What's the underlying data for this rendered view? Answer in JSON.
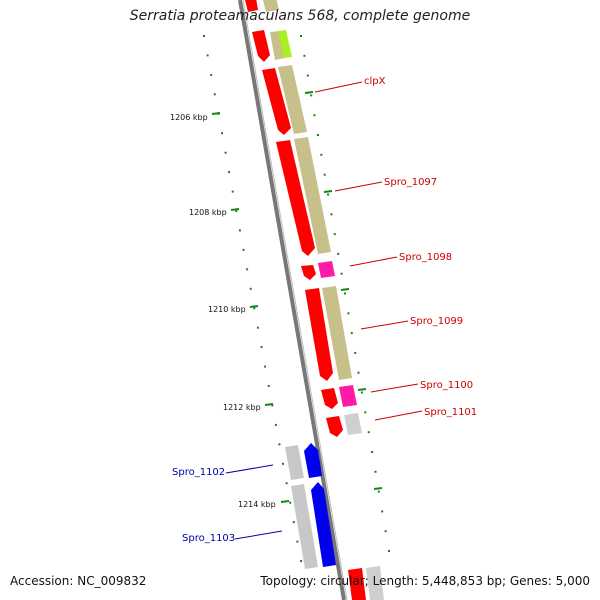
{
  "title": "Serratia proteamaculans 568, complete genome",
  "footer": {
    "accession": "Accession: NC_009832",
    "summary": "Topology: circular; Length: 5,448,853 bp; Genes: 5,000"
  },
  "colors": {
    "red": "#ff0000",
    "olive": "#c8c08a",
    "lime": "#a8f020",
    "magenta": "#ff1aa8",
    "grey": "#cfcfcf",
    "blue": "#0000ff",
    "backbone": "#777777",
    "tick": "#118811",
    "label_red": "#cc0000",
    "label_blue": "#0000aa"
  },
  "kbp_labels": [
    "1206 kbp",
    "1208 kbp",
    "1210 kbp",
    "1212 kbp",
    "1214 kbp"
  ],
  "gene_labels": [
    {
      "text": "clpX",
      "color": "red"
    },
    {
      "text": "Spro_1097",
      "color": "red"
    },
    {
      "text": "Spro_1098",
      "color": "red"
    },
    {
      "text": "Spro_1099",
      "color": "red"
    },
    {
      "text": "Spro_1100",
      "color": "red"
    },
    {
      "text": "Spro_1101",
      "color": "red"
    },
    {
      "text": "Spro_1102",
      "color": "blue"
    },
    {
      "text": "Spro_1103",
      "color": "blue"
    }
  ]
}
